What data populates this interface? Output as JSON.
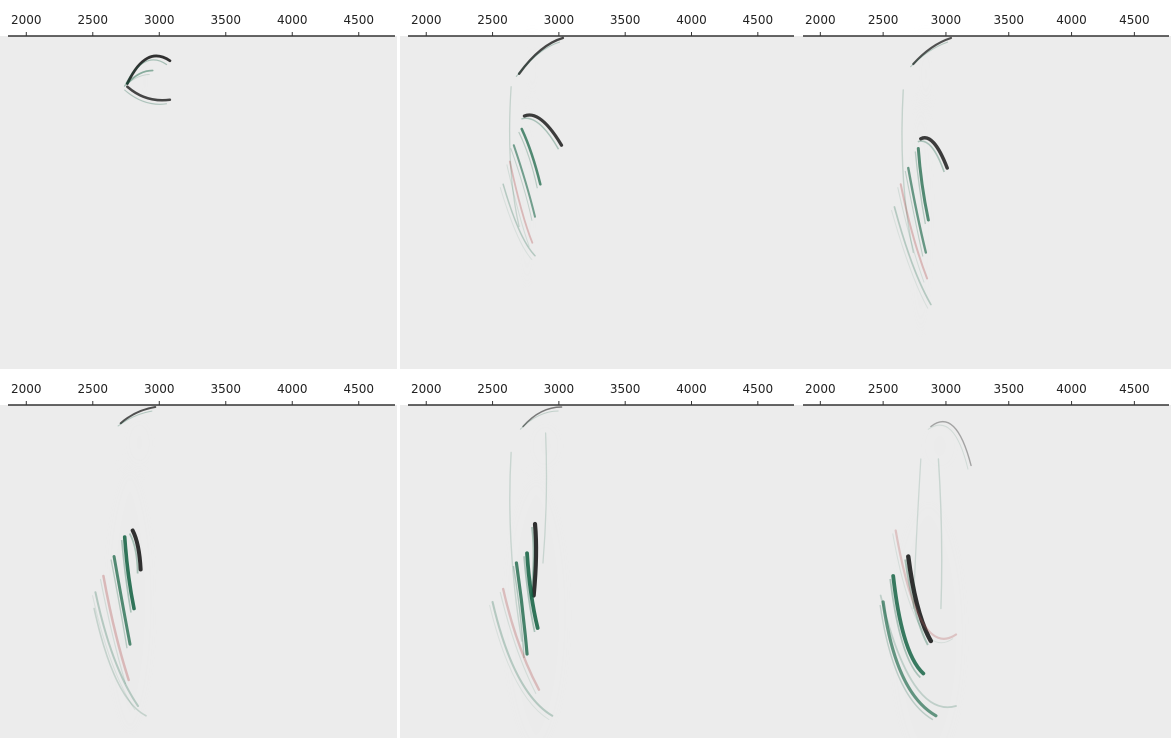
{
  "figure": {
    "panel_count": 6,
    "layout": "2x3 grid",
    "axis_position": "top",
    "axis_ticks": [
      2000,
      2500,
      3000,
      3500,
      4000,
      4500
    ],
    "axis_tick_labels": [
      "2000",
      "2500",
      "3000",
      "3500",
      "4000",
      "4500"
    ],
    "axis_range": [
      1870,
      4720
    ],
    "background_color": "#ececec",
    "axis_color": "#333333",
    "wave_colors": {
      "positive": "#0f5f3f",
      "negative": "#b75a5a",
      "dark": "#1c1c1c"
    },
    "panels": [
      {
        "index": 1,
        "row": 1,
        "col": 1
      },
      {
        "index": 2,
        "row": 1,
        "col": 2
      },
      {
        "index": 3,
        "row": 1,
        "col": 3
      },
      {
        "index": 4,
        "row": 2,
        "col": 1
      },
      {
        "index": 5,
        "row": 2,
        "col": 2
      },
      {
        "index": 6,
        "row": 2,
        "col": 3
      }
    ]
  }
}
